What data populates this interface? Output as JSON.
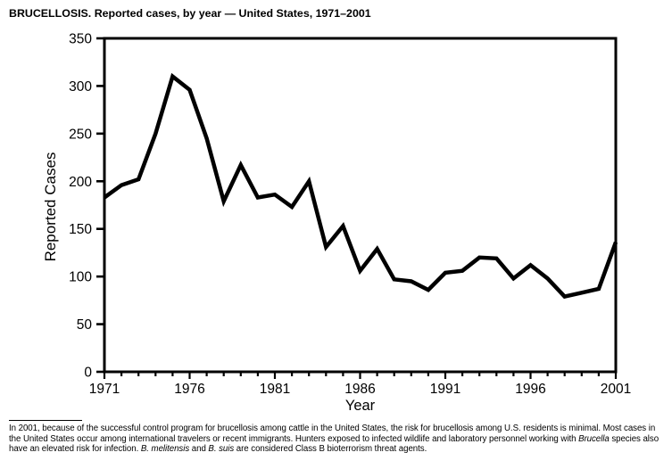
{
  "chart_data": {
    "type": "line",
    "title": "BRUCELLOSIS. Reported cases, by year — United States, 1971–2001",
    "xlabel": "Year",
    "ylabel": "Reported Cases",
    "xlim": [
      1971,
      2001
    ],
    "ylim": [
      0,
      350
    ],
    "x_major_ticks": [
      1971,
      1976,
      1981,
      1986,
      1991,
      1996,
      2001
    ],
    "x_minor_step": 1,
    "y_ticks": [
      0,
      50,
      100,
      150,
      200,
      250,
      300,
      350
    ],
    "grid": false,
    "legend": "none",
    "line_color": "#000000",
    "background_color": "#ffffff",
    "x": [
      1971,
      1972,
      1973,
      1974,
      1975,
      1976,
      1977,
      1978,
      1979,
      1980,
      1981,
      1982,
      1983,
      1984,
      1985,
      1986,
      1987,
      1988,
      1989,
      1990,
      1991,
      1992,
      1993,
      1994,
      1995,
      1996,
      1997,
      1998,
      1999,
      2000,
      2001
    ],
    "values": [
      183,
      196,
      202,
      250,
      310,
      296,
      245,
      179,
      217,
      183,
      186,
      173,
      200,
      131,
      153,
      106,
      129,
      97,
      95,
      86,
      104,
      106,
      120,
      119,
      98,
      112,
      98,
      79,
      83,
      87,
      136
    ]
  },
  "footnote": {
    "segments": [
      {
        "text": "In 2001, because of the successful control program for brucellosis among cattle in the United States, the risk for brucellosis among U.S. residents is minimal. Most cases in the United States occur among international travelers or recent immigrants. Hunters exposed to infected wildlife and laboratory personnel working with ",
        "italic": false
      },
      {
        "text": "Brucella",
        "italic": true
      },
      {
        "text": " species also have an elevated risk for infection. ",
        "italic": false
      },
      {
        "text": "B. melitensis",
        "italic": true
      },
      {
        "text": " and ",
        "italic": false
      },
      {
        "text": "B. suis",
        "italic": true
      },
      {
        "text": " are considered Class B bioterrorism threat agents.",
        "italic": false
      }
    ]
  }
}
